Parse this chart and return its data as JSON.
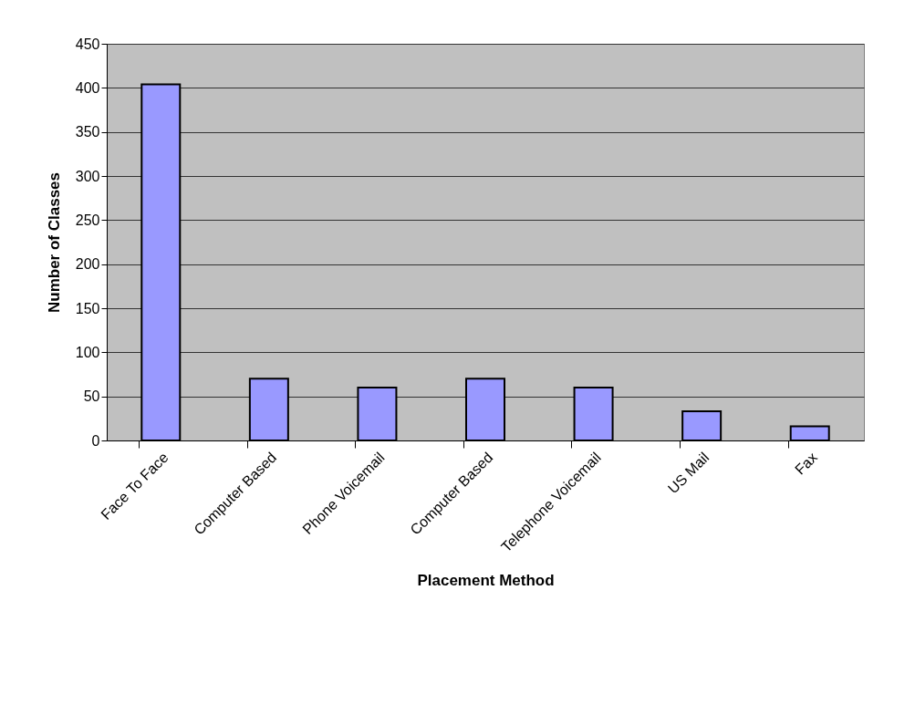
{
  "chart_data": {
    "type": "bar",
    "xlabel": "Placement Method",
    "ylabel": "Number of Classes",
    "categories": [
      "Face To Face",
      "Computer Based",
      "Phone Voicemail",
      "Computer Based",
      "Telephone Voicemail",
      "US Mail",
      "Fax"
    ],
    "values": [
      404,
      70,
      60,
      70,
      60,
      33,
      16
    ],
    "color": "#9999ff",
    "ylim": [
      0,
      450
    ],
    "yticks": [
      0,
      50,
      100,
      150,
      200,
      250,
      300,
      350,
      400,
      450
    ],
    "grid": "y"
  }
}
